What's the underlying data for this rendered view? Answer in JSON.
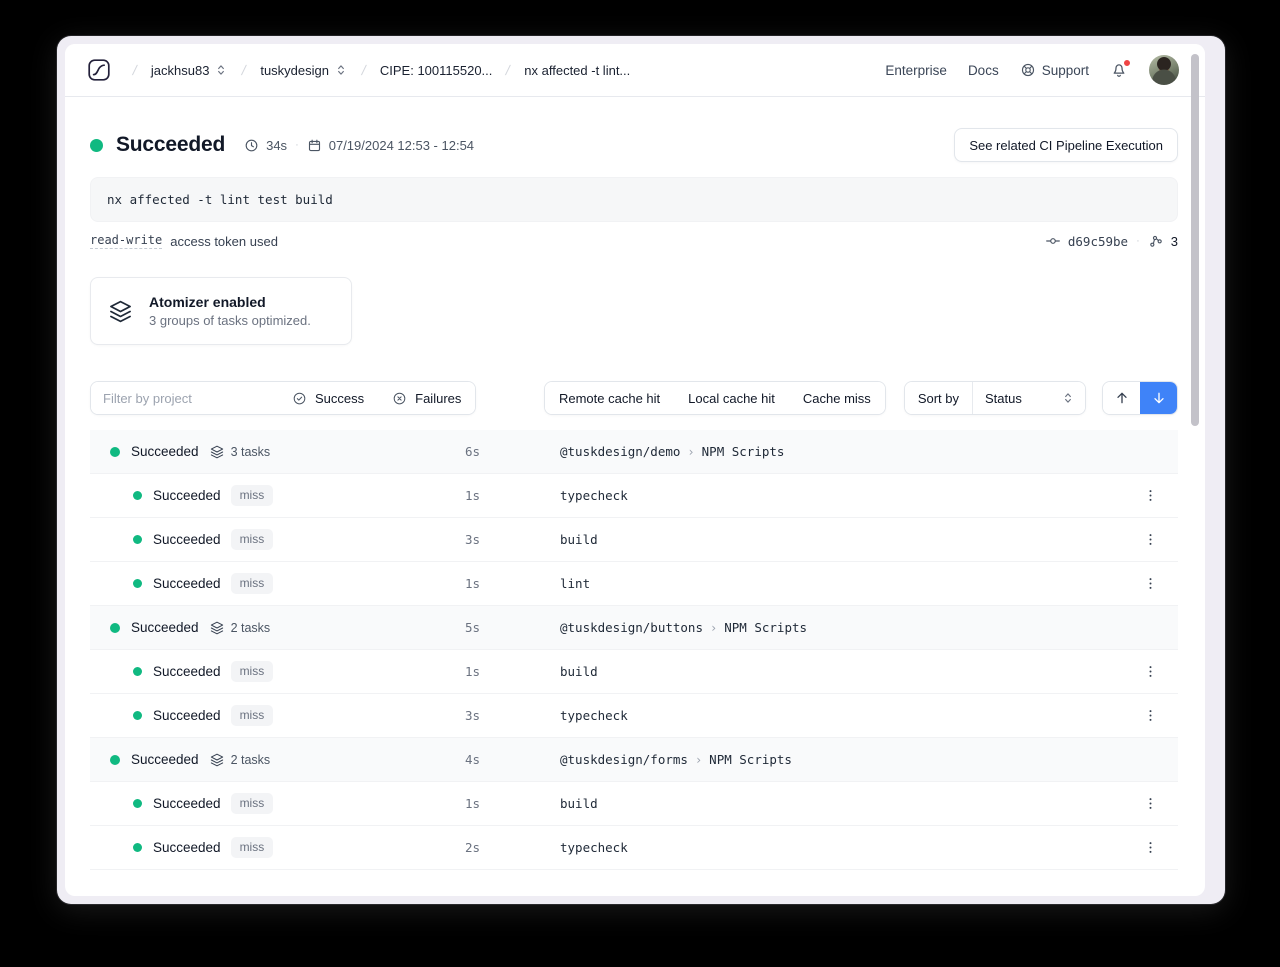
{
  "nav": {
    "breadcrumb_separator": "/",
    "breadcrumbs": [
      {
        "label": "jackhsu83",
        "selector": true
      },
      {
        "label": "tuskydesign",
        "selector": true
      },
      {
        "label": "CIPE: 100115520...",
        "selector": false
      },
      {
        "label": "nx affected -t lint...",
        "selector": false
      }
    ],
    "links": [
      {
        "label": "Enterprise",
        "icon": "none"
      },
      {
        "label": "Docs",
        "icon": "none"
      },
      {
        "label": "Support",
        "icon": "life-buoy"
      }
    ],
    "notification_dot": true
  },
  "status": {
    "label": "Succeeded",
    "duration": "34s",
    "meta_separator": "·",
    "date_range": "07/19/2024 12:53 - 12:54",
    "related_button": "See related CI Pipeline Execution"
  },
  "command": "nx affected -t lint test build",
  "token": {
    "scope": "read-write",
    "text": "access token used",
    "commit": "d69c59be",
    "separator": "·",
    "run_group_count": "3"
  },
  "atomizer": {
    "title": "Atomizer enabled",
    "subtitle": "3 groups of tasks optimized."
  },
  "filter_bar": {
    "filter_placeholder": "Filter by project",
    "success_label": "Success",
    "failures_label": "Failures",
    "cache_filters": [
      "Remote cache hit",
      "Local cache hit",
      "Cache miss"
    ],
    "sort_label": "Sort by",
    "sort_value": "Status"
  },
  "task_list": {
    "name_separator": "›",
    "groups": [
      {
        "status": "Succeeded",
        "tasks_label": "3 tasks",
        "duration": "6s",
        "project": "@tuskdesign/demo",
        "target_group": "NPM Scripts",
        "tasks": [
          {
            "status": "Succeeded",
            "cache": "miss",
            "duration": "1s",
            "name": "typecheck"
          },
          {
            "status": "Succeeded",
            "cache": "miss",
            "duration": "3s",
            "name": "build"
          },
          {
            "status": "Succeeded",
            "cache": "miss",
            "duration": "1s",
            "name": "lint"
          }
        ]
      },
      {
        "status": "Succeeded",
        "tasks_label": "2 tasks",
        "duration": "5s",
        "project": "@tuskdesign/buttons",
        "target_group": "NPM Scripts",
        "tasks": [
          {
            "status": "Succeeded",
            "cache": "miss",
            "duration": "1s",
            "name": "build"
          },
          {
            "status": "Succeeded",
            "cache": "miss",
            "duration": "3s",
            "name": "typecheck"
          }
        ]
      },
      {
        "status": "Succeeded",
        "tasks_label": "2 tasks",
        "duration": "4s",
        "project": "@tuskdesign/forms",
        "target_group": "NPM Scripts",
        "tasks": [
          {
            "status": "Succeeded",
            "cache": "miss",
            "duration": "1s",
            "name": "build"
          },
          {
            "status": "Succeeded",
            "cache": "miss",
            "duration": "2s",
            "name": "typecheck"
          }
        ]
      }
    ]
  },
  "colors": {
    "status_green": "#10b981",
    "accent_blue": "#3f83f8",
    "alert_red": "#ef4444"
  }
}
